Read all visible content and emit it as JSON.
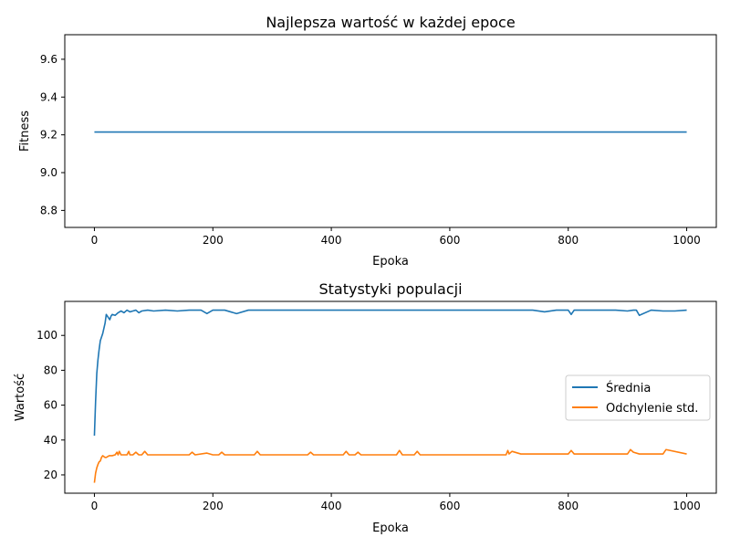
{
  "chart_data": [
    {
      "type": "line",
      "title": "Najlepsza wartość w każdej epoce",
      "xlabel": "Epoka",
      "ylabel": "Fitness",
      "xlim": [
        -50,
        1050
      ],
      "ylim": [
        8.71,
        9.73
      ],
      "xticks": [
        0,
        200,
        400,
        600,
        800,
        1000
      ],
      "yticks": [
        8.8,
        9.0,
        9.2,
        9.4,
        9.6
      ],
      "ytick_labels": [
        "8.8",
        "9.0",
        "9.2",
        "9.4",
        "9.6"
      ],
      "grid": false,
      "series": [
        {
          "color": "#1f77b4",
          "x": [
            0,
            1000
          ],
          "y": [
            9.215,
            9.215
          ]
        }
      ]
    },
    {
      "type": "line",
      "title": "Statystyki populacji",
      "xlabel": "Epoka",
      "ylabel": "Wartość",
      "xlim": [
        -50,
        1050
      ],
      "ylim": [
        9.5,
        119.5
      ],
      "xticks": [
        0,
        200,
        400,
        600,
        800,
        1000
      ],
      "yticks": [
        20,
        40,
        60,
        80,
        100
      ],
      "grid": false,
      "legend": "center-right",
      "series": [
        {
          "name": "Średnia",
          "color": "#1f77b4",
          "x": [
            0,
            2,
            4,
            6,
            8,
            10,
            12,
            14,
            16,
            18,
            20,
            22,
            24,
            26,
            28,
            30,
            35,
            40,
            45,
            50,
            55,
            60,
            65,
            70,
            75,
            80,
            90,
            100,
            120,
            140,
            160,
            180,
            190,
            200,
            220,
            240,
            260,
            280,
            300,
            320,
            340,
            360,
            380,
            400,
            420,
            440,
            460,
            480,
            500,
            520,
            540,
            560,
            580,
            600,
            620,
            640,
            660,
            680,
            690,
            700,
            720,
            740,
            760,
            780,
            800,
            805,
            810,
            820,
            840,
            860,
            880,
            900,
            910,
            915,
            920,
            940,
            960,
            980,
            1000
          ],
          "y": [
            42.5,
            62,
            78,
            86,
            92,
            97,
            99,
            101,
            104,
            107,
            112,
            111,
            110,
            109,
            111,
            112,
            111.5,
            113,
            114,
            113,
            114.5,
            113.5,
            114,
            114.5,
            113,
            114,
            114.5,
            114,
            114.5,
            114,
            114.5,
            114.5,
            112.5,
            114.5,
            114.5,
            112.5,
            114.5,
            114.5,
            114.5,
            114.5,
            114.5,
            114.5,
            114.5,
            114.5,
            114.5,
            114.5,
            114.5,
            114.5,
            114.5,
            114.5,
            114.5,
            114.5,
            114.5,
            114.5,
            114.5,
            114.5,
            114.5,
            114.5,
            114.5,
            114.5,
            114.5,
            114.5,
            113.5,
            114.5,
            114.5,
            112,
            114.5,
            114.5,
            114.5,
            114.5,
            114.5,
            114,
            114.5,
            114.5,
            111.5,
            114.5,
            114,
            114,
            114.5
          ]
        },
        {
          "name": "Odchylenie std.",
          "color": "#ff7f0e",
          "x": [
            0,
            2,
            4,
            6,
            8,
            10,
            12,
            14,
            16,
            18,
            20,
            25,
            30,
            35,
            38,
            40,
            42,
            45,
            50,
            55,
            58,
            60,
            65,
            70,
            75,
            80,
            85,
            90,
            100,
            120,
            140,
            160,
            165,
            170,
            190,
            200,
            210,
            215,
            220,
            240,
            260,
            270,
            275,
            280,
            300,
            320,
            340,
            360,
            365,
            370,
            400,
            420,
            425,
            430,
            440,
            445,
            450,
            480,
            500,
            510,
            515,
            520,
            540,
            545,
            550,
            600,
            640,
            680,
            695,
            698,
            700,
            705,
            720,
            760,
            800,
            805,
            810,
            840,
            860,
            880,
            900,
            905,
            910,
            920,
            960,
            965,
            1000
          ],
          "y": [
            15.5,
            21,
            24,
            26,
            27.5,
            28,
            30,
            31,
            30.5,
            30,
            30,
            31,
            31,
            31.5,
            33,
            31.5,
            33.5,
            31.5,
            31.5,
            31.5,
            33.5,
            31.5,
            31.5,
            33,
            31.5,
            31.5,
            33.5,
            31.5,
            31.5,
            31.5,
            31.5,
            31.5,
            33,
            31.5,
            32.5,
            31.5,
            31.5,
            33,
            31.5,
            31.5,
            31.5,
            31.5,
            33.5,
            31.5,
            31.5,
            31.5,
            31.5,
            31.5,
            33,
            31.5,
            31.5,
            31.5,
            33.5,
            31.5,
            31.5,
            33,
            31.5,
            31.5,
            31.5,
            31.5,
            34,
            31.5,
            31.5,
            33.5,
            31.5,
            31.5,
            31.5,
            31.5,
            31.5,
            34,
            32,
            33.5,
            32,
            32,
            32,
            34,
            32,
            32,
            32,
            32,
            32,
            34.5,
            33,
            32,
            32,
            34.5,
            32
          ]
        }
      ]
    }
  ]
}
